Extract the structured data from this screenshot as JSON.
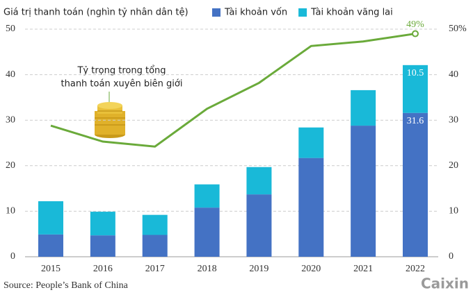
{
  "chart_data": {
    "type": "bar",
    "title": "Giá trị thanh toán (nghìn tỷ nhân dân tệ)",
    "annotations": [
      "Tỷ trọng trong tổng",
      "thanh toán xuyên biên giới"
    ],
    "source": "Source: People’s Bank of China",
    "logo": "Caixin",
    "categories": [
      "2015",
      "2016",
      "2017",
      "2018",
      "2019",
      "2020",
      "2021",
      "2022"
    ],
    "series": [
      {
        "name": "Tài khoản vốn",
        "color": "#4472c4",
        "values": [
          4.9,
          4.7,
          4.8,
          10.8,
          13.7,
          21.7,
          28.8,
          31.6
        ]
      },
      {
        "name": "Tài khoản vãng lai",
        "color": "#19b9d8",
        "values": [
          7.3,
          5.2,
          4.4,
          5.1,
          6.0,
          6.7,
          7.8,
          10.5
        ]
      },
      {
        "type": "line",
        "axis": "y2",
        "color": "#6aaa3a",
        "values": [
          28.8,
          25.3,
          24.2,
          32.5,
          38.2,
          46.3,
          47.3,
          49
        ],
        "value_labels": [
          null,
          null,
          null,
          null,
          null,
          null,
          null,
          "49%"
        ]
      }
    ],
    "ylim": [
      0,
      50
    ],
    "yticks": [
      0,
      10,
      20,
      30,
      40,
      50
    ],
    "y2lim": [
      0,
      50
    ],
    "y2ticks": [
      0,
      10,
      20,
      30,
      40,
      {
        "value": 50,
        "label": "50%"
      }
    ],
    "grid": true
  }
}
